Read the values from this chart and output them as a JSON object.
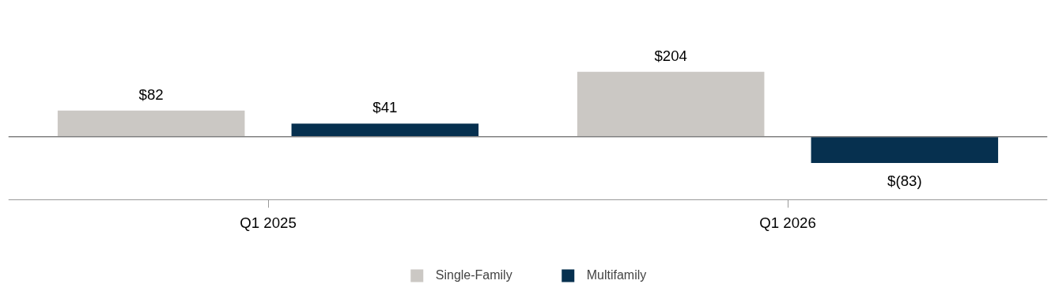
{
  "chart_data": {
    "type": "bar",
    "categories": [
      "Q1 2025",
      "Q1 2026"
    ],
    "series": [
      {
        "name": "Single-Family",
        "color": "#cbc8c4",
        "values": [
          82,
          204
        ],
        "value_labels": [
          "$82",
          "$204"
        ]
      },
      {
        "name": "Multifamily",
        "color": "#06304f",
        "values": [
          41,
          -83
        ],
        "value_labels": [
          "$41",
          "$(83)"
        ]
      }
    ],
    "ref_lines": [
      {
        "axis": "y",
        "value": 0,
        "color": "#808080"
      }
    ],
    "legend": "bottom"
  }
}
